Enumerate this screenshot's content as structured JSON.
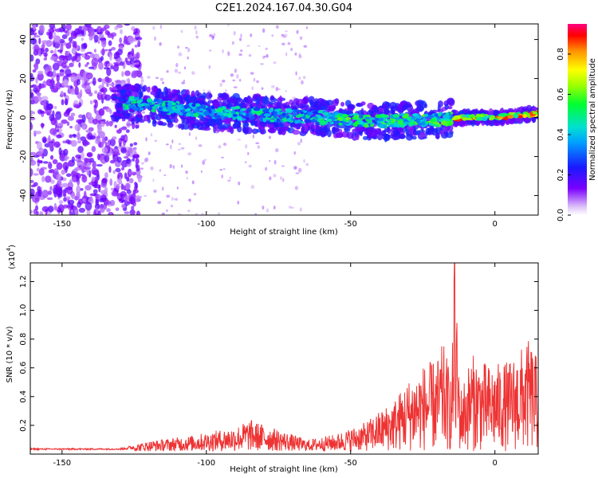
{
  "title": "C2E1.2024.167.04.30.G04",
  "chart_data": [
    {
      "type": "heatmap",
      "name": "spectrogram",
      "xlabel": "Height of straight line (km)",
      "ylabel": "Frequency (Hz)",
      "xlim": [
        -161,
        15
      ],
      "ylim": [
        -50,
        48
      ],
      "xticks": [
        -150,
        -100,
        -50,
        0
      ],
      "yticks": [
        -40,
        -20,
        0,
        20,
        40
      ],
      "description_of_ridge": [
        [
          -130,
          8
        ],
        [
          -100,
          3
        ],
        [
          -60,
          0
        ],
        [
          -40,
          -2
        ],
        [
          -20,
          -1
        ],
        [
          -10,
          0
        ],
        [
          0,
          0
        ],
        [
          15,
          2
        ]
      ],
      "colorbar": {
        "label": "Normalized spectral amplitude",
        "range": [
          0,
          0.95
        ],
        "ticks": [
          0.0,
          0.2,
          0.4,
          0.6,
          0.8
        ],
        "tick_labels": [
          "0.0",
          "0.2",
          "0.4",
          "0.6",
          "0.8"
        ]
      }
    },
    {
      "type": "line",
      "name": "snr",
      "xlabel": "Height of straight line (km)",
      "ylabel": "SNR (10 * v/v)",
      "yscale_label": "(x10",
      "yscale_exp": "4",
      "yscale_close": ")",
      "xlim": [
        -161,
        15
      ],
      "ylim": [
        0,
        1.33
      ],
      "xticks": [
        -150,
        -100,
        -50,
        0
      ],
      "yticks": [
        0.2,
        0.4,
        0.6,
        0.8,
        1.0,
        1.2
      ],
      "color": "#ee3333",
      "envelope": [
        {
          "x": -161,
          "y": 0.04
        },
        {
          "x": -130,
          "y": 0.04
        },
        {
          "x": -120,
          "y": 0.09
        },
        {
          "x": -105,
          "y": 0.13
        },
        {
          "x": -90,
          "y": 0.19
        },
        {
          "x": -85,
          "y": 0.24
        },
        {
          "x": -75,
          "y": 0.17
        },
        {
          "x": -65,
          "y": 0.1
        },
        {
          "x": -55,
          "y": 0.14
        },
        {
          "x": -45,
          "y": 0.22
        },
        {
          "x": -35,
          "y": 0.38
        },
        {
          "x": -30,
          "y": 0.52
        },
        {
          "x": -25,
          "y": 0.62
        },
        {
          "x": -20,
          "y": 0.66
        },
        {
          "x": -18,
          "y": 0.78
        },
        {
          "x": -15,
          "y": 0.55
        },
        {
          "x": -14,
          "y": 1.33
        },
        {
          "x": -12,
          "y": 0.45
        },
        {
          "x": -8,
          "y": 0.7
        },
        {
          "x": -2,
          "y": 0.62
        },
        {
          "x": 5,
          "y": 0.65
        },
        {
          "x": 12,
          "y": 0.8
        },
        {
          "x": 15,
          "y": 0.65
        }
      ]
    }
  ]
}
